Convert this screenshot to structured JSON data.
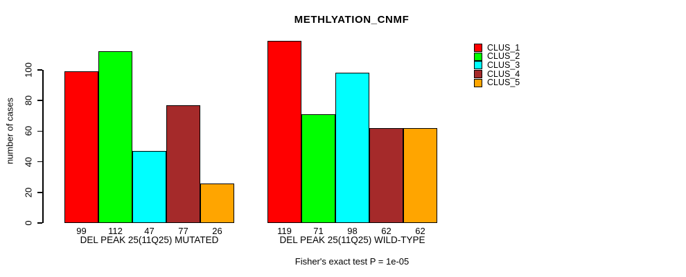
{
  "figure": {
    "title": "METHLYATION_CNMF",
    "footer": "Fisher's exact test P = 1e-05"
  },
  "y_axis": {
    "label": "number of cases",
    "ticks": [
      0,
      20,
      40,
      60,
      80,
      100
    ]
  },
  "legend": {
    "items": [
      {
        "label": "CLUS_1",
        "color": "#FF0000"
      },
      {
        "label": "CLUS_2",
        "color": "#00FF00"
      },
      {
        "label": "CLUS_3",
        "color": "#00FFFF"
      },
      {
        "label": "CLUS_4",
        "color": "#A52A2A"
      },
      {
        "label": "CLUS_5",
        "color": "#FFA500"
      }
    ]
  },
  "chart_data": {
    "type": "bar",
    "title": "METHLYATION_CNMF",
    "ylabel": "number of cases",
    "ylim": [
      0,
      119
    ],
    "yticks": [
      0,
      20,
      40,
      60,
      80,
      100
    ],
    "grid": false,
    "legend_position": "right-outside",
    "bar_value_labels_shown": true,
    "clusters": [
      "CLUS_1",
      "CLUS_2",
      "CLUS_3",
      "CLUS_4",
      "CLUS_5"
    ],
    "cluster_colors": [
      "#FF0000",
      "#00FF00",
      "#00FFFF",
      "#A52A2A",
      "#FFA500"
    ],
    "groups": [
      {
        "label": "DEL PEAK 25(11Q25) MUTATED",
        "values": [
          99,
          112,
          47,
          77,
          26
        ]
      },
      {
        "label": "DEL PEAK 25(11Q25) WILD-TYPE",
        "values": [
          119,
          71,
          98,
          62,
          62
        ]
      }
    ],
    "series": [
      {
        "name": "CLUS_1",
        "color": "#FF0000",
        "values": [
          99,
          119
        ]
      },
      {
        "name": "CLUS_2",
        "color": "#00FF00",
        "values": [
          112,
          71
        ]
      },
      {
        "name": "CLUS_3",
        "color": "#00FFFF",
        "values": [
          47,
          98
        ]
      },
      {
        "name": "CLUS_4",
        "color": "#A52A2A",
        "values": [
          77,
          62
        ]
      },
      {
        "name": "CLUS_5",
        "color": "#FFA500",
        "values": [
          26,
          62
        ]
      }
    ],
    "annotation": "Fisher's exact test P = 1e-05"
  }
}
